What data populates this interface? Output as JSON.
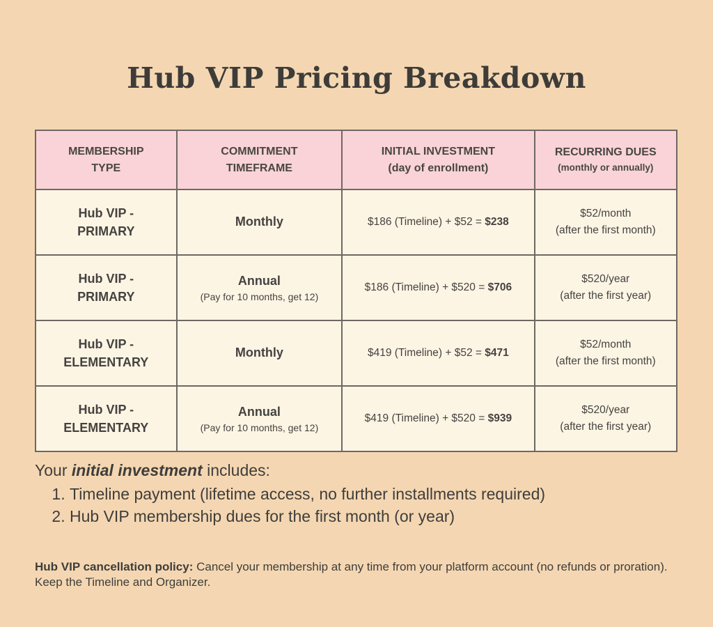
{
  "title": "Hub VIP Pricing Breakdown",
  "colors": {
    "background": "#f4d7b2",
    "header_bg": "#f9d3d7",
    "cell_bg": "#fdf5e4",
    "border": "#6e6762",
    "text": "#403e3c"
  },
  "chart_data": {
    "type": "table",
    "title": "Hub VIP Pricing Breakdown",
    "columns": [
      "MEMBERSHIP TYPE",
      "COMMITMENT TIMEFRAME",
      "INITIAL INVESTMENT (day of enrollment)",
      "RECURRING DUES (monthly or annually)"
    ],
    "rows": [
      [
        "Hub VIP - PRIMARY",
        "Monthly",
        "$186 (Timeline) + $52 = $238",
        "$52/month (after the first month)"
      ],
      [
        "Hub VIP - PRIMARY",
        "Annual (Pay for 10 months, get 12)",
        "$186 (Timeline) + $520 = $706",
        "$520/year (after the first year)"
      ],
      [
        "Hub VIP - ELEMENTARY",
        "Monthly",
        "$419 (Timeline) + $52 = $471",
        "$52/month (after the first month)"
      ],
      [
        "Hub VIP - ELEMENTARY",
        "Annual (Pay for 10 months, get 12)",
        "$419 (Timeline) + $520 = $939",
        "$520/year (after the first year)"
      ]
    ]
  },
  "table": {
    "columns": [
      {
        "title": "MEMBERSHIP TYPE",
        "subtitle": ""
      },
      {
        "title": "COMMITMENT TIMEFRAME",
        "subtitle": ""
      },
      {
        "title": "INITIAL INVESTMENT",
        "subtitle": "(day of enrollment)"
      },
      {
        "title": "RECURRING DUES",
        "subtitle": "(monthly or annually)"
      }
    ],
    "rows": [
      {
        "membership": "Hub VIP - PRIMARY",
        "commitment": "Monthly",
        "commitment_note": "",
        "investment": "$186 (Timeline) + $52 = ",
        "investment_total": "$238",
        "recurring": "$52/month",
        "recurring_note": "(after the first month)"
      },
      {
        "membership": "Hub VIP - PRIMARY",
        "commitment": "Annual",
        "commitment_note": "(Pay for 10 months, get 12)",
        "investment": "$186 (Timeline) + $520 = ",
        "investment_total": "$706",
        "recurring": "$520/year",
        "recurring_note": "(after the first year)"
      },
      {
        "membership": "Hub VIP - ELEMENTARY",
        "commitment": "Monthly",
        "commitment_note": "",
        "investment": "$419 (Timeline) + $52 = ",
        "investment_total": "$471",
        "recurring": "$52/month",
        "recurring_note": "(after the first month)"
      },
      {
        "membership": "Hub VIP - ELEMENTARY",
        "commitment": "Annual",
        "commitment_note": "(Pay for 10 months, get 12)",
        "investment": "$419 (Timeline) + $520 = ",
        "investment_total": "$939",
        "recurring": "$520/year",
        "recurring_note": "(after the first year)"
      }
    ]
  },
  "notes": {
    "intro_prefix": "Your ",
    "intro_emphasis": "initial investment",
    "intro_suffix": " includes:",
    "items": [
      "Timeline payment (lifetime access, no further installments required)",
      "Hub VIP membership dues for the first month (or year)"
    ],
    "policy_label": "Hub VIP cancellation policy:",
    "policy_text": " Cancel your membership at any time from your platform account (no refunds or proration). Keep the Timeline and Organizer."
  }
}
